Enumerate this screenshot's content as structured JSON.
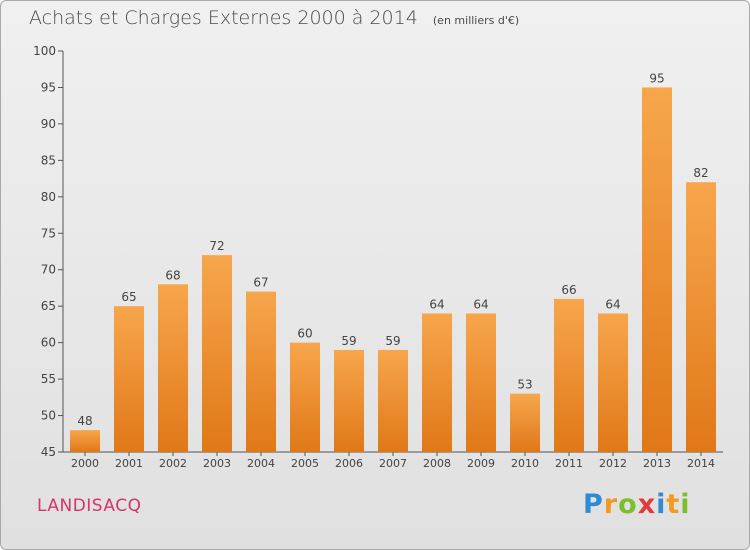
{
  "chart_data": {
    "type": "bar",
    "title": "Achats et Charges Externes 2000 à 2014",
    "subtitle": "(en milliers d'€)",
    "categories": [
      "2000",
      "2001",
      "2002",
      "2003",
      "2004",
      "2005",
      "2006",
      "2007",
      "2008",
      "2009",
      "2010",
      "2011",
      "2012",
      "2013",
      "2014"
    ],
    "values": [
      48,
      65,
      68,
      72,
      67,
      60,
      59,
      59,
      64,
      64,
      53,
      66,
      64,
      95,
      82
    ],
    "ylim": [
      45,
      100
    ],
    "yticks": [
      45,
      50,
      55,
      60,
      65,
      70,
      75,
      80,
      85,
      90,
      95,
      100
    ],
    "grid": false,
    "legend": "none",
    "bar_color": "#f08a24"
  },
  "commune": "LANDISACQ",
  "logo": {
    "text": "Proxiti",
    "letters": [
      {
        "ch": "P",
        "color": "#2e8bd6"
      },
      {
        "ch": "r",
        "color": "#f39a1e"
      },
      {
        "ch": "o",
        "color": "#7bbf2a"
      },
      {
        "ch": "x",
        "color": "#e23b3b"
      },
      {
        "ch": "i",
        "color": "#2e8bd6"
      },
      {
        "ch": "t",
        "color": "#f39a1e"
      },
      {
        "ch": "i",
        "color": "#7bbf2a"
      }
    ]
  }
}
